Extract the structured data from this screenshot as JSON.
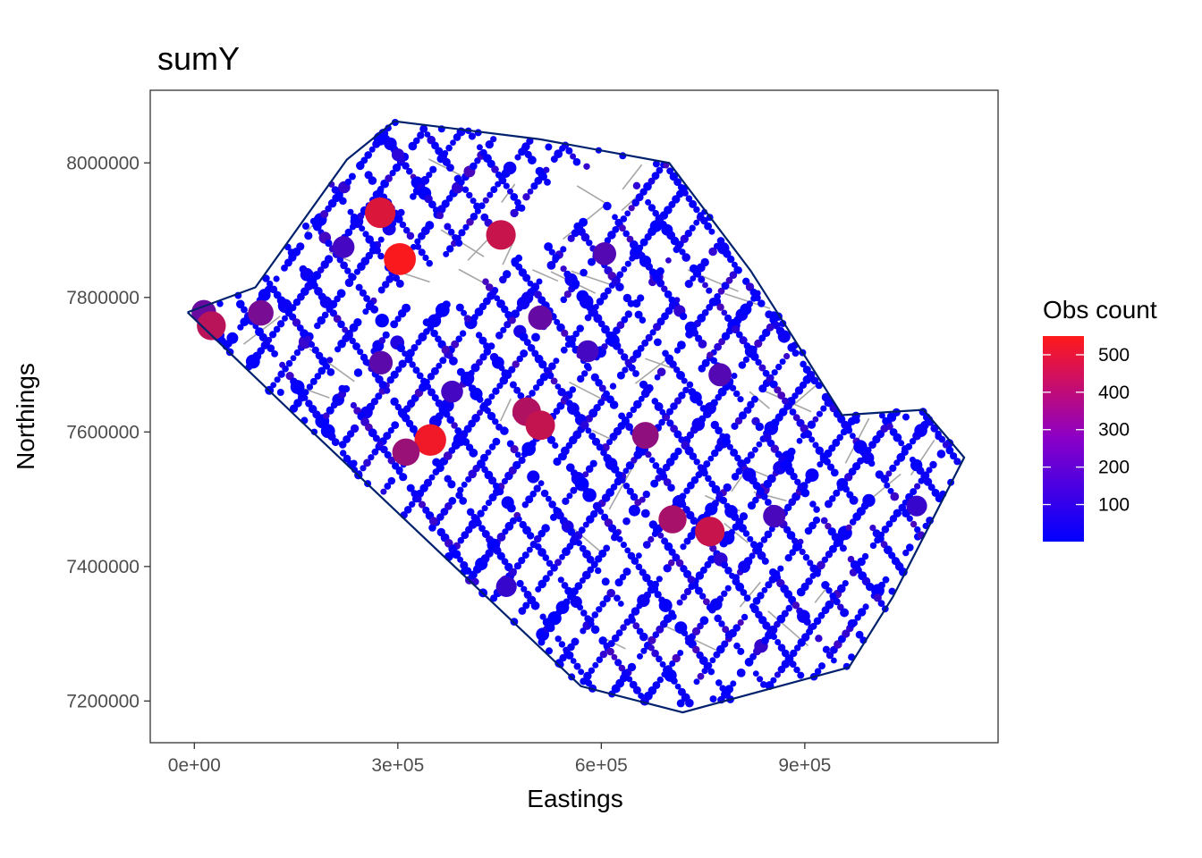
{
  "chart_data": {
    "type": "scatter",
    "title": "sumY",
    "xlabel": "Eastings",
    "ylabel": "Northings",
    "x_ticks": [
      {
        "value": 0,
        "label": "0e+00"
      },
      {
        "value": 300000,
        "label": "3e+05"
      },
      {
        "value": 600000,
        "label": "6e+05"
      },
      {
        "value": 900000,
        "label": "9e+05"
      }
    ],
    "y_ticks": [
      {
        "value": 7200000,
        "label": "7200000"
      },
      {
        "value": 7400000,
        "label": "7400000"
      },
      {
        "value": 7600000,
        "label": "7600000"
      },
      {
        "value": 7800000,
        "label": "7800000"
      },
      {
        "value": 8000000,
        "label": "8000000"
      }
    ],
    "xlim": [
      -65000,
      1185000
    ],
    "ylim": [
      7138000,
      8108000
    ],
    "grid": false,
    "legend": {
      "title": "Obs count",
      "placement": "right",
      "color_low": "#0000FF",
      "color_high": "#FF1A1A",
      "range": [
        1,
        550
      ],
      "breaks": [
        100,
        200,
        300,
        400,
        500
      ]
    },
    "boundary_color": "#00206E",
    "track_color": "#A6A6A6",
    "boundary": [
      [
        -10000,
        7778000
      ],
      [
        90000,
        7815000
      ],
      [
        225000,
        8005000
      ],
      [
        295000,
        8062000
      ],
      [
        510000,
        8035000
      ],
      [
        700000,
        8000000
      ],
      [
        820000,
        7840000
      ],
      [
        880000,
        7745000
      ],
      [
        955000,
        7625000
      ],
      [
        1075000,
        7633000
      ],
      [
        1135000,
        7562000
      ],
      [
        1030000,
        7355000
      ],
      [
        965000,
        7250000
      ],
      [
        720000,
        7183000
      ],
      [
        570000,
        7222000
      ],
      [
        150000,
        7623000
      ],
      [
        -10000,
        7778000
      ]
    ],
    "highlight_points": [
      {
        "x": 14000,
        "y": 7778000,
        "count": 230
      },
      {
        "x": 25000,
        "y": 7758000,
        "count": 400
      },
      {
        "x": 98000,
        "y": 7777000,
        "count": 260
      },
      {
        "x": 274000,
        "y": 7926000,
        "count": 470
      },
      {
        "x": 303000,
        "y": 7857000,
        "count": 540
      },
      {
        "x": 452000,
        "y": 7893000,
        "count": 430
      },
      {
        "x": 348000,
        "y": 7588000,
        "count": 520
      },
      {
        "x": 312000,
        "y": 7570000,
        "count": 330
      },
      {
        "x": 275000,
        "y": 7703000,
        "count": 200
      },
      {
        "x": 510000,
        "y": 7770000,
        "count": 220
      },
      {
        "x": 490000,
        "y": 7630000,
        "count": 380
      },
      {
        "x": 510000,
        "y": 7610000,
        "count": 420
      },
      {
        "x": 665000,
        "y": 7595000,
        "count": 310
      },
      {
        "x": 760000,
        "y": 7452000,
        "count": 430
      },
      {
        "x": 705000,
        "y": 7470000,
        "count": 360
      },
      {
        "x": 605000,
        "y": 7865000,
        "count": 180
      },
      {
        "x": 580000,
        "y": 7720000,
        "count": 150
      },
      {
        "x": 775000,
        "y": 7685000,
        "count": 180
      },
      {
        "x": 855000,
        "y": 7475000,
        "count": 160
      },
      {
        "x": 1065000,
        "y": 7490000,
        "count": 120
      },
      {
        "x": 220000,
        "y": 7875000,
        "count": 150
      },
      {
        "x": 380000,
        "y": 7660000,
        "count": 150
      },
      {
        "x": 460000,
        "y": 7370000,
        "count": 120
      }
    ],
    "track_groups": [
      {
        "note": "NE-SW diagonal flight lines",
        "direction": [
          1,
          1
        ]
      },
      {
        "note": "NW-SE diagonal flight lines",
        "direction": [
          1,
          -1
        ]
      }
    ]
  }
}
